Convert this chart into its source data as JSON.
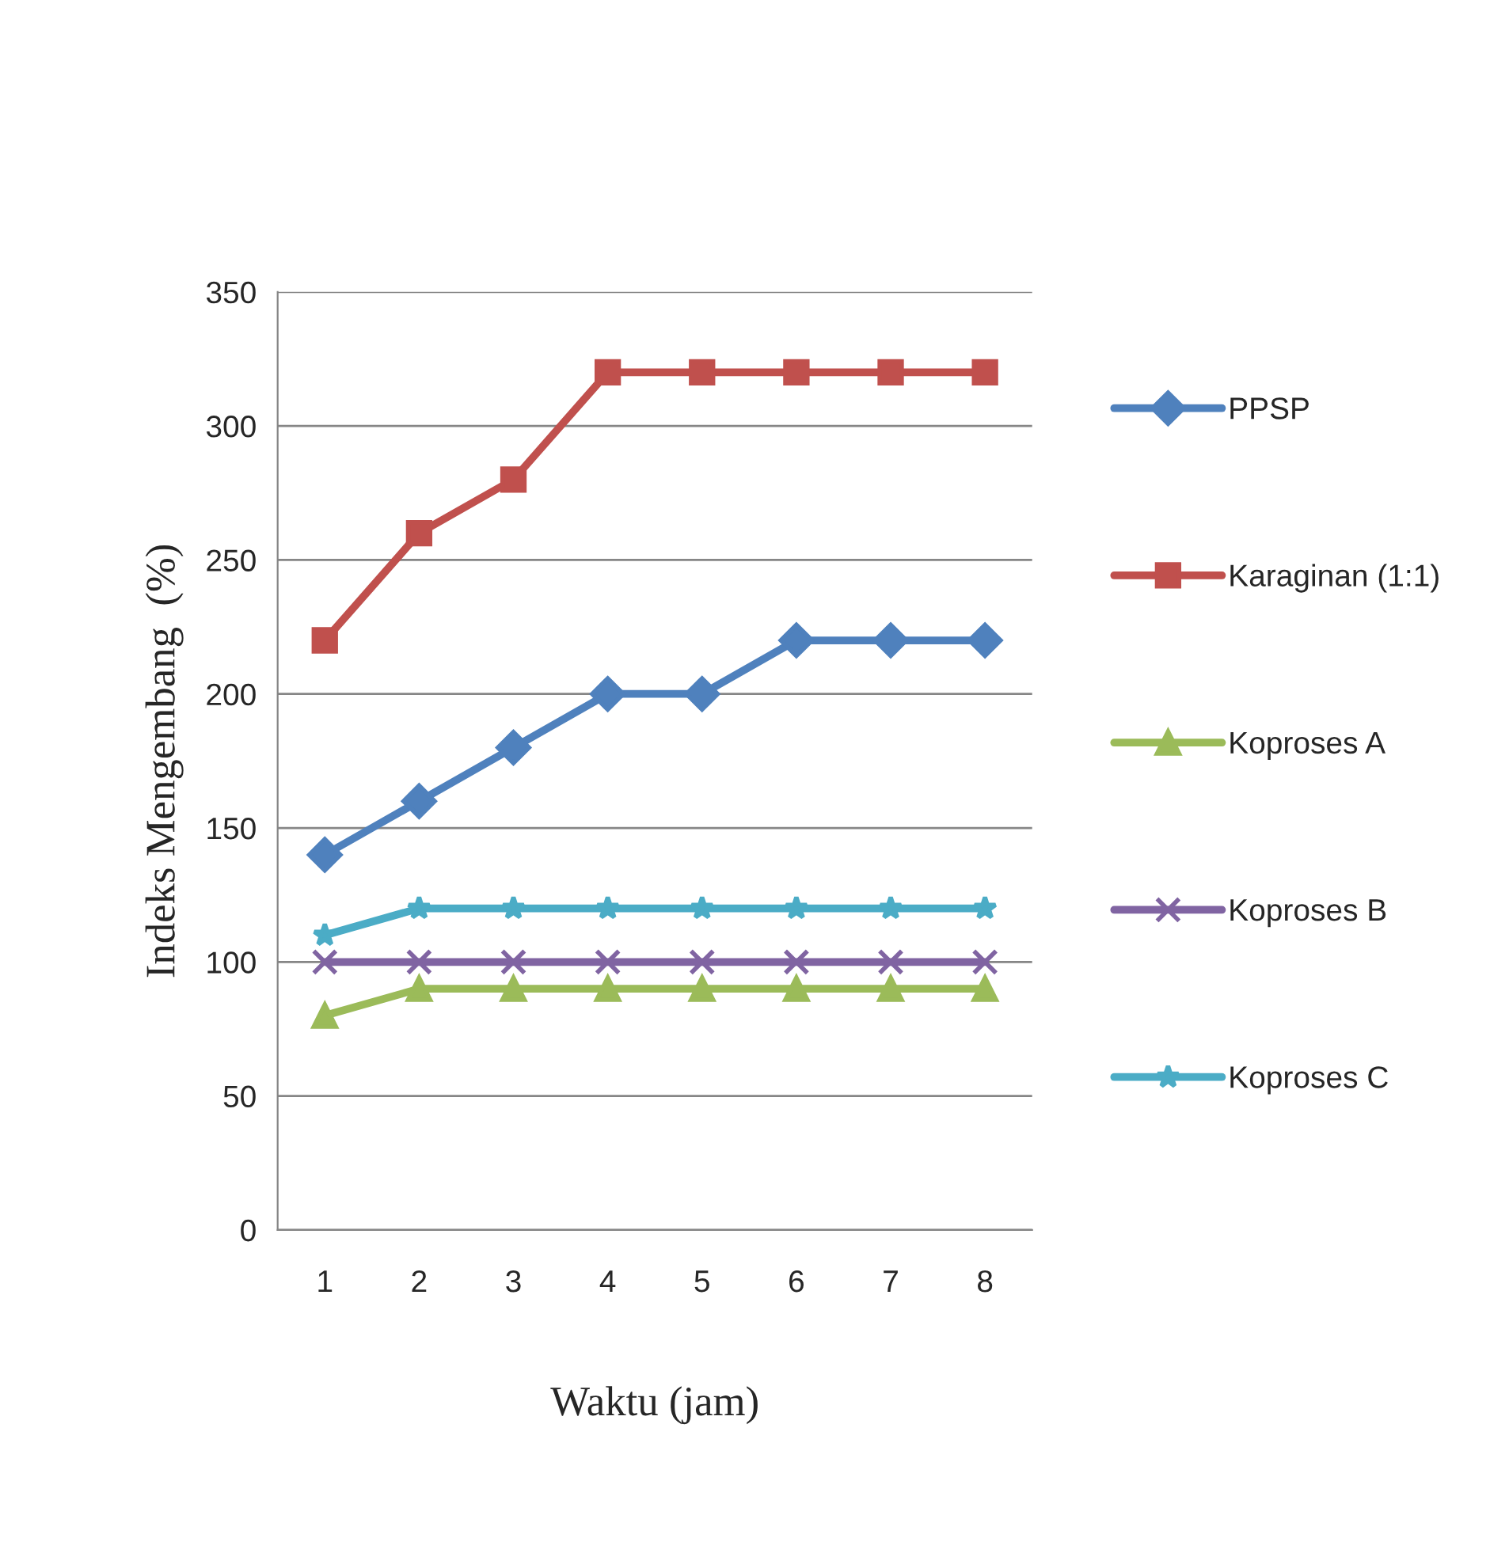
{
  "chart_data": {
    "type": "line",
    "xlabel": "Waktu (jam)",
    "ylabel": "Indeks Mengembang  (%)",
    "categories": [
      "1",
      "2",
      "3",
      "4",
      "5",
      "6",
      "7",
      "8"
    ],
    "series": [
      {
        "name": "PPSP",
        "color": "#4f81bd",
        "marker": "diamond",
        "values": [
          140,
          160,
          180,
          200,
          200,
          220,
          220,
          220
        ]
      },
      {
        "name": "Karaginan (1:1)",
        "color": "#c0504d",
        "marker": "square",
        "values": [
          220,
          260,
          280,
          320,
          320,
          320,
          320,
          320
        ]
      },
      {
        "name": "Koproses A",
        "color": "#9bbb59",
        "marker": "triangle",
        "values": [
          80,
          90,
          90,
          90,
          90,
          90,
          90,
          90
        ]
      },
      {
        "name": "Koproses B",
        "color": "#8064a2",
        "marker": "cross",
        "values": [
          100,
          100,
          100,
          100,
          100,
          100,
          100,
          100
        ]
      },
      {
        "name": "Koproses C",
        "color": "#4bacc6",
        "marker": "star",
        "values": [
          110,
          120,
          120,
          120,
          120,
          120,
          120,
          120
        ]
      }
    ],
    "ylim": [
      0,
      350
    ],
    "yticks": [
      0,
      50,
      100,
      150,
      200,
      250,
      300,
      350
    ],
    "grid": "y",
    "legend": "right"
  }
}
